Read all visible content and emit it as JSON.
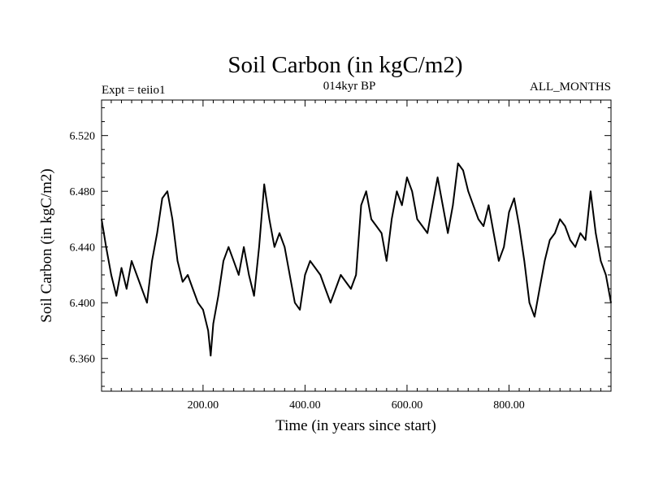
{
  "chart_data": {
    "type": "line",
    "title": "Soil Carbon (in kgC/m2)",
    "subtitle_left": "Expt = teiio1",
    "subtitle_center": "014kyr BP",
    "subtitle_right": "ALL_MONTHS",
    "xlabel": "Time (in years since start)",
    "ylabel": "Soil Carbon (in kgC/m2)",
    "xlim": [
      1,
      1000
    ],
    "ylim": [
      6.3365,
      6.5455
    ],
    "x_ticks": [
      200,
      400,
      600,
      800
    ],
    "x_tick_labels": [
      "200.00",
      "400.00",
      "600.00",
      "800.00"
    ],
    "y_ticks": [
      6.36,
      6.4,
      6.44,
      6.48,
      6.52
    ],
    "y_tick_labels": [
      "6.360",
      "6.400",
      "6.440",
      "6.480",
      "6.520"
    ],
    "grid": false,
    "line_color": "#000000",
    "series": [
      {
        "x": [
          1,
          10,
          20,
          30,
          40,
          50,
          60,
          70,
          80,
          90,
          100,
          110,
          120,
          130,
          140,
          150,
          160,
          170,
          180,
          190,
          200,
          210,
          215,
          220,
          230,
          240,
          250,
          260,
          270,
          280,
          290,
          300,
          310,
          320,
          330,
          340,
          350,
          360,
          370,
          380,
          390,
          400,
          410,
          420,
          430,
          440,
          450,
          460,
          470,
          480,
          490,
          500,
          510,
          520,
          530,
          540,
          550,
          560,
          570,
          580,
          590,
          600,
          610,
          620,
          630,
          640,
          650,
          660,
          670,
          680,
          690,
          700,
          710,
          720,
          730,
          740,
          750,
          760,
          770,
          780,
          790,
          800,
          810,
          820,
          830,
          840,
          850,
          860,
          870,
          880,
          890,
          900,
          910,
          920,
          930,
          940,
          950,
          960,
          970,
          980,
          990,
          1000
        ],
        "y": [
          6.46,
          6.44,
          6.42,
          6.405,
          6.425,
          6.41,
          6.43,
          6.42,
          6.41,
          6.4,
          6.43,
          6.45,
          6.475,
          6.48,
          6.46,
          6.43,
          6.415,
          6.42,
          6.41,
          6.4,
          6.395,
          6.38,
          6.362,
          6.385,
          6.405,
          6.43,
          6.44,
          6.43,
          6.42,
          6.44,
          6.42,
          6.405,
          6.44,
          6.485,
          6.46,
          6.44,
          6.45,
          6.44,
          6.42,
          6.4,
          6.395,
          6.42,
          6.43,
          6.425,
          6.42,
          6.41,
          6.4,
          6.41,
          6.42,
          6.415,
          6.41,
          6.42,
          6.47,
          6.48,
          6.46,
          6.455,
          6.45,
          6.43,
          6.46,
          6.48,
          6.47,
          6.49,
          6.48,
          6.46,
          6.455,
          6.45,
          6.47,
          6.49,
          6.47,
          6.45,
          6.47,
          6.5,
          6.495,
          6.48,
          6.47,
          6.46,
          6.455,
          6.47,
          6.45,
          6.43,
          6.44,
          6.465,
          6.475,
          6.455,
          6.43,
          6.4,
          6.39,
          6.41,
          6.43,
          6.445,
          6.45,
          6.46,
          6.455,
          6.445,
          6.44,
          6.45,
          6.445,
          6.48,
          6.45,
          6.43,
          6.42,
          6.4
        ]
      }
    ]
  }
}
